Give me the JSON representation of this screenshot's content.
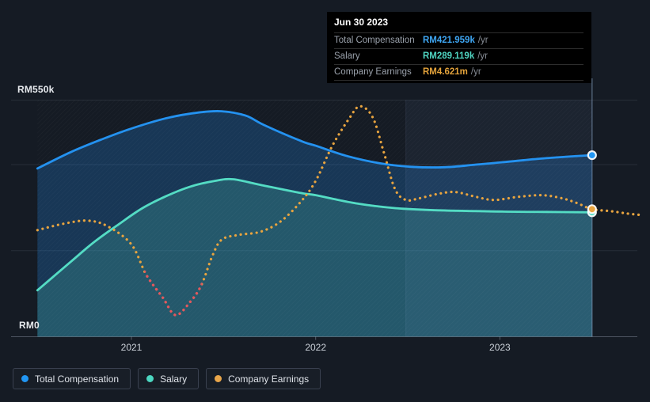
{
  "axes": {
    "y_top_label": "RM550k",
    "y_bottom_label": "RM0",
    "x_ticks": [
      "2021",
      "2022",
      "2023"
    ]
  },
  "tooltip": {
    "date": "Jun 30 2023",
    "rows": [
      {
        "label": "Total Compensation",
        "value": "RM421.959k",
        "suffix": "/yr",
        "color": "#3fa7f4"
      },
      {
        "label": "Salary",
        "value": "RM289.119k",
        "suffix": "/yr",
        "color": "#4fd5c2"
      },
      {
        "label": "Company Earnings",
        "value": "RM4.621m",
        "suffix": "/yr",
        "color": "#e4a33b"
      }
    ]
  },
  "legend": {
    "items": [
      {
        "label": "Total Compensation",
        "color": "#2196f3"
      },
      {
        "label": "Salary",
        "color": "#4cd7c1"
      },
      {
        "label": "Company Earnings",
        "color": "#e9a64a"
      }
    ]
  },
  "chart_data": {
    "type": "line",
    "x_unit": "year",
    "xlim": [
      2020.49,
      2023.77
    ],
    "x_ticks": [
      2021,
      2022,
      2023
    ],
    "y_left_axis": {
      "unit": "RM thousands",
      "lim": [
        0,
        550
      ],
      "gridline_values": [
        550,
        400,
        200
      ],
      "top_label": "RM550k",
      "bottom_label": "RM0"
    },
    "y_earnings_axis": {
      "unit": "RM millions",
      "lim": [
        -3.41,
        11.49
      ]
    },
    "highlight_span": [
      2022.49,
      2023.5
    ],
    "hover_x": 2023.5,
    "hover_date": "Jun 30 2023",
    "series": [
      {
        "name": "Total Compensation",
        "axis": "left",
        "line": "solid",
        "color": "#2492f0",
        "fill_color": "rgba(36,140,235,0.25)",
        "marker_color": "#2196f3",
        "hover_value": 421.959,
        "points": [
          [
            2020.49,
            391
          ],
          [
            2020.67,
            429
          ],
          [
            2020.84,
            459
          ],
          [
            2021.0,
            484
          ],
          [
            2021.19,
            508
          ],
          [
            2021.36,
            521
          ],
          [
            2021.49,
            524
          ],
          [
            2021.62,
            514
          ],
          [
            2021.72,
            492
          ],
          [
            2021.92,
            455
          ],
          [
            2022.0,
            444
          ],
          [
            2022.17,
            420
          ],
          [
            2022.35,
            403
          ],
          [
            2022.52,
            395
          ],
          [
            2022.7,
            394
          ],
          [
            2022.87,
            400
          ],
          [
            2023.05,
            407
          ],
          [
            2023.25,
            415
          ],
          [
            2023.5,
            421.959
          ]
        ]
      },
      {
        "name": "Salary",
        "axis": "left",
        "line": "solid",
        "color": "#54dcc4",
        "fill_color": "rgba(84,220,196,0.20)",
        "marker_color": "#54dcc4",
        "hover_value": 289.119,
        "points": [
          [
            2020.49,
            108
          ],
          [
            2020.67,
            174
          ],
          [
            2020.8,
            221
          ],
          [
            2020.93,
            261
          ],
          [
            2021.06,
            299
          ],
          [
            2021.19,
            327
          ],
          [
            2021.32,
            349
          ],
          [
            2021.45,
            362
          ],
          [
            2021.55,
            366
          ],
          [
            2021.7,
            353
          ],
          [
            2021.92,
            334
          ],
          [
            2022.0,
            329
          ],
          [
            2022.22,
            310
          ],
          [
            2022.43,
            299
          ],
          [
            2022.65,
            294
          ],
          [
            2023.0,
            291
          ],
          [
            2023.25,
            290
          ],
          [
            2023.5,
            289.119
          ]
        ]
      },
      {
        "name": "Company Earnings",
        "axis": "earnings",
        "line": "dotted",
        "color": "#e8a43f",
        "negative_color": "#e5545f",
        "negative_span": [
          2021.07,
          2021.385
        ],
        "marker_color": "#e8a43f",
        "hover_value": 4.621,
        "points": [
          [
            2020.49,
            3.3
          ],
          [
            2020.63,
            3.7
          ],
          [
            2020.76,
            3.9
          ],
          [
            2020.87,
            3.55
          ],
          [
            2021.0,
            2.4
          ],
          [
            2021.08,
            0.5
          ],
          [
            2021.17,
            -0.95
          ],
          [
            2021.24,
            -2.05
          ],
          [
            2021.32,
            -1.2
          ],
          [
            2021.38,
            -0.15
          ],
          [
            2021.44,
            1.7
          ],
          [
            2021.49,
            2.7
          ],
          [
            2021.58,
            3.0
          ],
          [
            2021.7,
            3.2
          ],
          [
            2021.81,
            3.85
          ],
          [
            2021.92,
            5.1
          ],
          [
            2022.0,
            6.4
          ],
          [
            2022.09,
            8.6
          ],
          [
            2022.18,
            10.3
          ],
          [
            2022.24,
            11.1
          ],
          [
            2022.31,
            10.4
          ],
          [
            2022.37,
            8.2
          ],
          [
            2022.43,
            5.9
          ],
          [
            2022.49,
            5.2
          ],
          [
            2022.56,
            5.3
          ],
          [
            2022.67,
            5.6
          ],
          [
            2022.76,
            5.7
          ],
          [
            2022.87,
            5.4
          ],
          [
            2022.97,
            5.2
          ],
          [
            2023.1,
            5.4
          ],
          [
            2023.23,
            5.5
          ],
          [
            2023.34,
            5.3
          ],
          [
            2023.42,
            5.0
          ],
          [
            2023.5,
            4.621
          ],
          [
            2023.6,
            4.5
          ],
          [
            2023.69,
            4.35
          ],
          [
            2023.77,
            4.25
          ]
        ]
      }
    ]
  }
}
